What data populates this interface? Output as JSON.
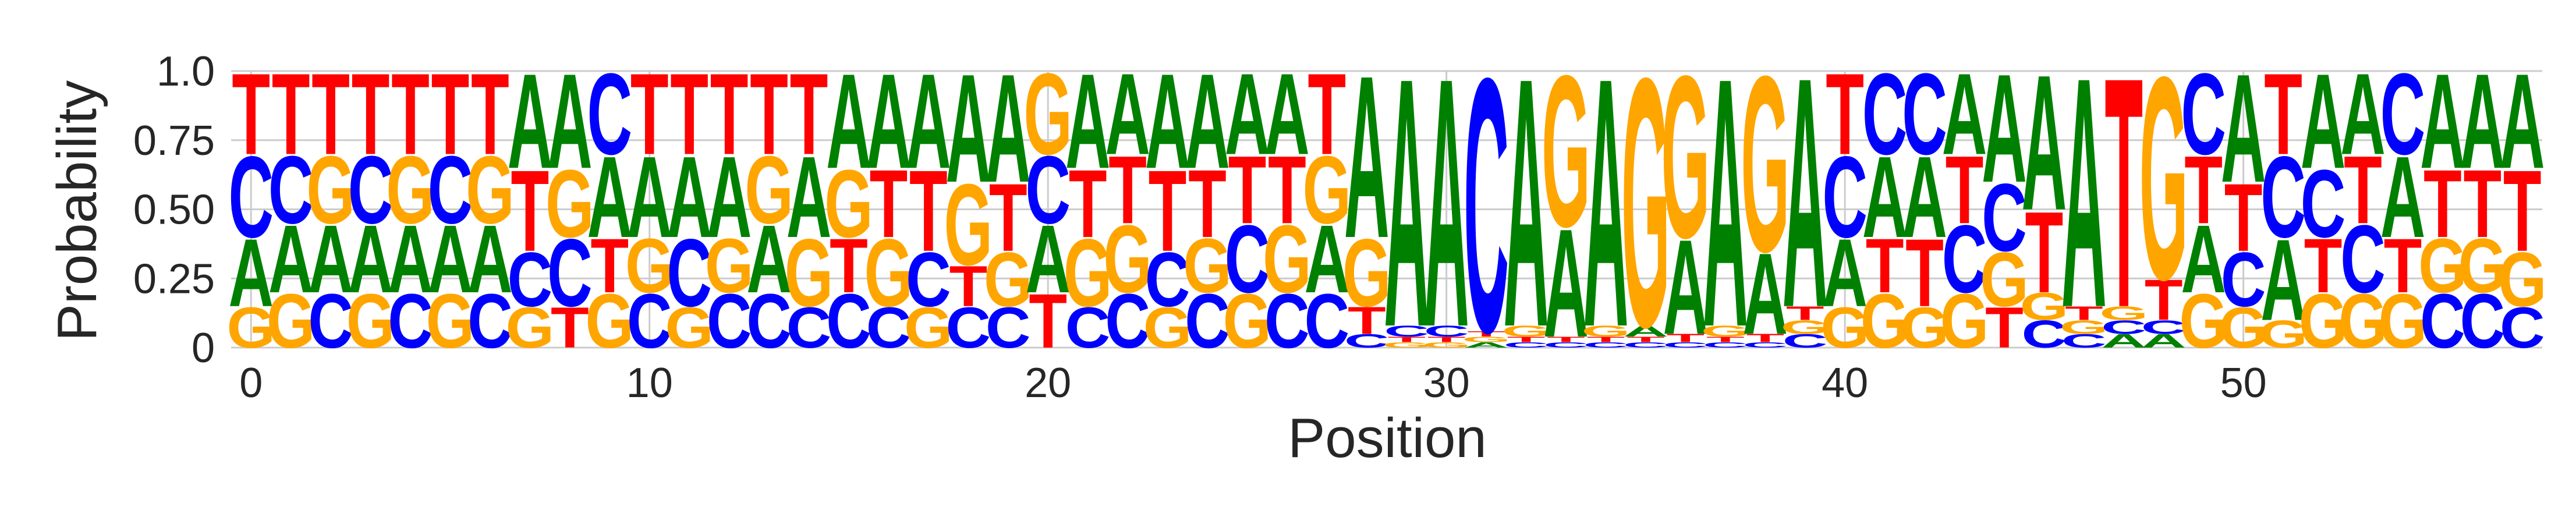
{
  "chart_data": {
    "type": "sequence-logo",
    "xlabel": "Position",
    "ylabel": "Probability",
    "xlim": [
      -0.5,
      57.5
    ],
    "ylim": [
      0,
      1
    ],
    "xticks": [
      0,
      10,
      20,
      30,
      40,
      50
    ],
    "xtick_labels": [
      "0",
      "10",
      "20",
      "30",
      "40",
      "50"
    ],
    "yticks": [
      0,
      0.25,
      0.5,
      0.75,
      1.0
    ],
    "ytick_labels": [
      "0",
      "0.25",
      "0.50",
      "0.75",
      "1.0"
    ],
    "grid": true,
    "colors": {
      "A": "#008000",
      "C": "#0000ff",
      "G": "#ffa500",
      "T": "#ff0000"
    },
    "positions": [
      {
        "A": 0.25,
        "C": 0.3,
        "G": 0.15,
        "T": 0.3
      },
      {
        "A": 0.25,
        "C": 0.25,
        "G": 0.2,
        "T": 0.3
      },
      {
        "A": 0.25,
        "C": 0.2,
        "G": 0.25,
        "T": 0.3
      },
      {
        "A": 0.25,
        "C": 0.25,
        "G": 0.2,
        "T": 0.3
      },
      {
        "A": 0.25,
        "C": 0.2,
        "G": 0.25,
        "T": 0.3
      },
      {
        "A": 0.25,
        "C": 0.25,
        "G": 0.2,
        "T": 0.3
      },
      {
        "A": 0.25,
        "C": 0.2,
        "G": 0.25,
        "T": 0.3
      },
      {
        "A": 0.35,
        "C": 0.2,
        "G": 0.15,
        "T": 0.3
      },
      {
        "A": 0.35,
        "C": 0.25,
        "G": 0.25,
        "T": 0.15
      },
      {
        "A": 0.3,
        "C": 0.3,
        "G": 0.2,
        "T": 0.2
      },
      {
        "A": 0.3,
        "C": 0.2,
        "G": 0.2,
        "T": 0.3
      },
      {
        "A": 0.3,
        "C": 0.25,
        "G": 0.15,
        "T": 0.3
      },
      {
        "A": 0.3,
        "C": 0.2,
        "G": 0.2,
        "T": 0.3
      },
      {
        "A": 0.25,
        "C": 0.2,
        "G": 0.25,
        "T": 0.3
      },
      {
        "A": 0.3,
        "C": 0.15,
        "G": 0.25,
        "T": 0.3
      },
      {
        "A": 0.35,
        "C": 0.2,
        "G": 0.25,
        "T": 0.2
      },
      {
        "A": 0.35,
        "C": 0.15,
        "G": 0.25,
        "T": 0.25
      },
      {
        "A": 0.35,
        "C": 0.2,
        "G": 0.15,
        "T": 0.3
      },
      {
        "A": 0.4,
        "C": 0.15,
        "G": 0.3,
        "T": 0.15
      },
      {
        "A": 0.4,
        "C": 0.15,
        "G": 0.2,
        "T": 0.25
      },
      {
        "A": 0.25,
        "C": 0.25,
        "G": 0.3,
        "T": 0.2
      },
      {
        "A": 0.35,
        "C": 0.15,
        "G": 0.25,
        "T": 0.25
      },
      {
        "A": 0.3,
        "C": 0.2,
        "G": 0.25,
        "T": 0.25
      },
      {
        "A": 0.35,
        "C": 0.2,
        "G": 0.15,
        "T": 0.3
      },
      {
        "A": 0.35,
        "C": 0.2,
        "G": 0.2,
        "T": 0.25
      },
      {
        "A": 0.3,
        "C": 0.25,
        "G": 0.2,
        "T": 0.25
      },
      {
        "A": 0.3,
        "C": 0.2,
        "G": 0.25,
        "T": 0.25
      },
      {
        "A": 0.25,
        "C": 0.2,
        "G": 0.25,
        "T": 0.3
      },
      {
        "A": 0.6,
        "C": 0.05,
        "G": 0.25,
        "T": 0.1
      },
      {
        "A": 0.92,
        "C": 0.04,
        "G": 0.02,
        "T": 0.02
      },
      {
        "A": 0.92,
        "C": 0.04,
        "G": 0.02,
        "T": 0.02
      },
      {
        "A": 0.02,
        "C": 0.94,
        "G": 0.02,
        "T": 0.02
      },
      {
        "A": 0.92,
        "C": 0.02,
        "G": 0.04,
        "T": 0.02
      },
      {
        "A": 0.4,
        "C": 0.02,
        "G": 0.56,
        "T": 0.02
      },
      {
        "A": 0.92,
        "C": 0.02,
        "G": 0.04,
        "T": 0.02
      },
      {
        "A": 0.04,
        "C": 0.02,
        "G": 0.92,
        "T": 0.02
      },
      {
        "A": 0.35,
        "C": 0.02,
        "G": 0.6,
        "T": 0.03
      },
      {
        "A": 0.92,
        "C": 0.02,
        "G": 0.04,
        "T": 0.02
      },
      {
        "A": 0.3,
        "C": 0.02,
        "G": 0.65,
        "T": 0.03
      },
      {
        "A": 0.85,
        "C": 0.05,
        "G": 0.05,
        "T": 0.05
      },
      {
        "A": 0.25,
        "C": 0.3,
        "G": 0.15,
        "T": 0.3
      },
      {
        "A": 0.3,
        "C": 0.3,
        "G": 0.2,
        "T": 0.2
      },
      {
        "A": 0.3,
        "C": 0.3,
        "G": 0.15,
        "T": 0.25
      },
      {
        "A": 0.3,
        "C": 0.25,
        "G": 0.2,
        "T": 0.25
      },
      {
        "A": 0.4,
        "C": 0.25,
        "G": 0.2,
        "T": 0.15
      },
      {
        "A": 0.5,
        "C": 0.1,
        "G": 0.1,
        "T": 0.3
      },
      {
        "A": 0.85,
        "C": 0.05,
        "G": 0.05,
        "T": 0.05
      },
      {
        "A": 0.05,
        "C": 0.05,
        "G": 0.05,
        "T": 0.85
      },
      {
        "A": 0.05,
        "C": 0.05,
        "G": 0.75,
        "T": 0.15
      },
      {
        "A": 0.25,
        "C": 0.3,
        "G": 0.2,
        "T": 0.25
      },
      {
        "A": 0.4,
        "C": 0.2,
        "G": 0.15,
        "T": 0.25
      },
      {
        "A": 0.3,
        "C": 0.3,
        "G": 0.1,
        "T": 0.3
      },
      {
        "A": 0.35,
        "C": 0.25,
        "G": 0.2,
        "T": 0.2
      },
      {
        "A": 0.3,
        "C": 0.25,
        "G": 0.2,
        "T": 0.25
      },
      {
        "A": 0.3,
        "C": 0.3,
        "G": 0.2,
        "T": 0.2
      },
      {
        "A": 0.35,
        "C": 0.2,
        "G": 0.2,
        "T": 0.25
      },
      {
        "A": 0.35,
        "C": 0.2,
        "G": 0.2,
        "T": 0.25
      },
      {
        "A": 0.35,
        "C": 0.15,
        "G": 0.2,
        "T": 0.3
      }
    ]
  }
}
